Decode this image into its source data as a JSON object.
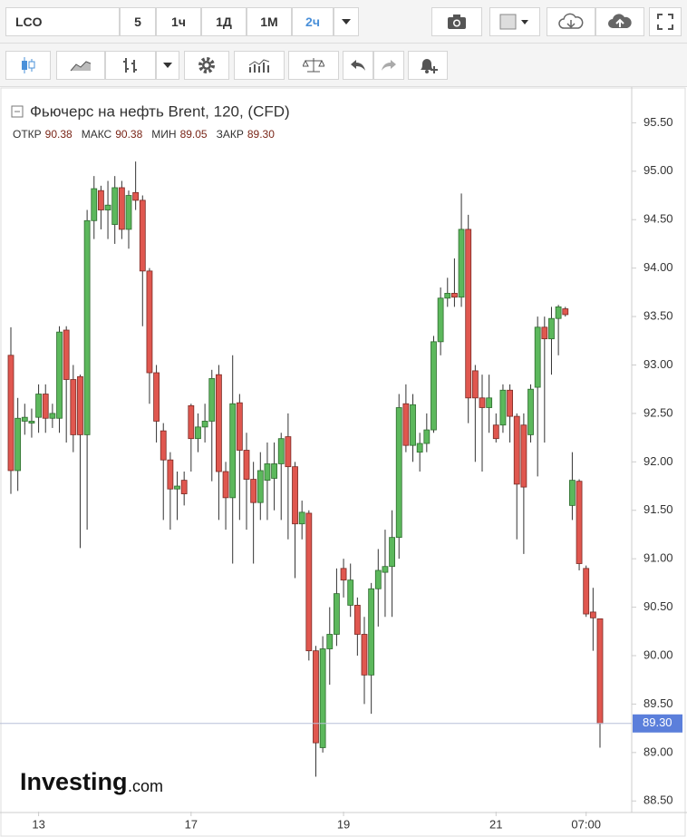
{
  "ui": {
    "symbol": "LCO",
    "intervals": [
      "5",
      "1ч",
      "1Д",
      "1М",
      "2ч"
    ],
    "brand": "Investing",
    "brand_suffix": ".com"
  },
  "chart_data": {
    "type": "candlestick",
    "title": "Фьючерс на нефть Brent, 120, (CFD)",
    "ohlc_header": [
      {
        "name": "ОТКР",
        "value": 90.38
      },
      {
        "name": "МАКС",
        "value": 90.38
      },
      {
        "name": "МИН",
        "value": 89.05
      },
      {
        "name": "ЗАКР",
        "value": {
          "value": 89.3,
          "label": "89.30"
        }
      }
    ],
    "up_color": "#5cb85c",
    "down_color": "#e0574f",
    "categories": [
      null,
      null,
      null,
      null,
      "13",
      null,
      null,
      null,
      null,
      null,
      null,
      null,
      null,
      null,
      null,
      null,
      null,
      null,
      null,
      null,
      null,
      null,
      null,
      null,
      null,
      null,
      "17",
      null,
      null,
      null,
      null,
      null,
      null,
      null,
      null,
      null,
      null,
      null,
      null,
      null,
      null,
      null,
      null,
      null,
      null,
      null,
      null,
      null,
      "19",
      null,
      null,
      null,
      null,
      null,
      null,
      null,
      null,
      null,
      null,
      null,
      null,
      null,
      null,
      null,
      null,
      null,
      null,
      null,
      null,
      null,
      "21",
      null,
      null,
      null,
      null,
      null,
      null,
      null,
      null,
      null,
      null,
      null,
      null,
      "07:00",
      null,
      null
    ],
    "open": [
      93.1,
      91.91,
      92.42,
      92.4,
      92.46,
      92.7,
      92.45,
      92.45,
      93.36,
      92.85,
      92.88,
      92.28,
      94.49,
      94.8,
      94.6,
      94.45,
      94.83,
      94.4,
      94.78,
      94.7,
      93.97,
      92.92,
      92.32,
      92.02,
      91.72,
      91.81,
      92.58,
      92.24,
      92.36,
      92.42,
      92.9,
      91.9,
      91.63,
      92.61,
      92.12,
      91.82,
      91.58,
      91.81,
      91.83,
      91.98,
      92.26,
      91.95,
      91.36,
      91.47,
      90.05,
      89.05,
      90.07,
      90.22,
      90.9,
      90.52,
      90.52,
      90.22,
      89.8,
      90.69,
      90.86,
      90.92,
      91.22,
      92.6,
      92.17,
      92.1,
      92.19,
      92.33,
      93.24,
      93.69,
      93.74,
      93.7,
      94.4,
      92.94,
      92.66,
      92.56,
      92.38,
      92.38,
      92.74,
      92.47,
      92.38,
      92.28,
      92.77,
      93.39,
      93.27,
      93.48,
      93.58,
      91.55,
      91.8,
      90.9,
      90.45,
      90.38
    ],
    "high": [
      93.39,
      92.66,
      92.6,
      92.55,
      92.8,
      92.8,
      92.6,
      93.4,
      93.4,
      93.0,
      92.9,
      94.6,
      94.95,
      94.85,
      94.9,
      94.95,
      94.9,
      94.8,
      95.1,
      94.75,
      94.0,
      93.0,
      92.4,
      92.1,
      91.9,
      91.9,
      92.6,
      92.5,
      92.6,
      92.95,
      93.0,
      92.0,
      93.1,
      92.7,
      92.3,
      92.0,
      92.1,
      92.2,
      92.2,
      92.3,
      92.5,
      92.0,
      91.6,
      91.5,
      90.1,
      90.2,
      90.5,
      90.9,
      91.0,
      90.95,
      90.6,
      90.4,
      90.75,
      91.1,
      91.3,
      91.5,
      92.7,
      92.8,
      92.7,
      92.3,
      92.5,
      93.3,
      93.8,
      93.9,
      94.1,
      94.77,
      94.55,
      93.0,
      92.9,
      92.9,
      92.5,
      92.8,
      92.8,
      92.5,
      92.5,
      92.8,
      93.5,
      93.5,
      93.6,
      93.62,
      93.6,
      92.1,
      91.82,
      90.93,
      90.7,
      90.38
    ],
    "low": [
      91.67,
      91.7,
      92.28,
      92.25,
      92.3,
      92.3,
      92.35,
      92.3,
      92.2,
      92.1,
      91.11,
      91.3,
      94.3,
      94.4,
      94.3,
      94.25,
      94.3,
      94.2,
      94.6,
      93.4,
      92.6,
      92.2,
      91.4,
      91.3,
      91.4,
      91.55,
      91.9,
      92.1,
      92.2,
      91.8,
      91.4,
      91.3,
      90.95,
      91.4,
      91.3,
      90.95,
      91.4,
      91.4,
      91.5,
      91.4,
      91.2,
      90.8,
      91.2,
      89.95,
      88.75,
      89.0,
      89.7,
      90.1,
      90.6,
      90.4,
      90.0,
      89.5,
      89.4,
      90.3,
      90.4,
      90.4,
      91.0,
      92.1,
      92.0,
      91.9,
      92.1,
      92.3,
      93.1,
      93.6,
      93.6,
      93.6,
      92.4,
      92.0,
      91.9,
      92.3,
      92.2,
      92.3,
      92.2,
      91.2,
      91.05,
      92.2,
      91.85,
      92.2,
      92.9,
      93.1,
      93.5,
      91.4,
      90.88,
      90.4,
      90.05,
      89.05
    ],
    "close": [
      91.91,
      92.45,
      92.46,
      92.42,
      92.7,
      92.45,
      92.5,
      93.34,
      92.85,
      92.28,
      92.28,
      94.49,
      94.82,
      94.6,
      94.65,
      94.83,
      94.4,
      94.75,
      94.7,
      93.97,
      92.92,
      92.42,
      92.02,
      91.72,
      91.75,
      91.67,
      92.24,
      92.36,
      92.42,
      92.86,
      91.9,
      91.63,
      92.6,
      92.12,
      91.82,
      91.58,
      91.91,
      91.98,
      91.98,
      92.24,
      91.95,
      91.36,
      91.48,
      90.05,
      89.1,
      90.07,
      90.22,
      90.64,
      90.78,
      90.78,
      90.22,
      89.8,
      90.69,
      90.88,
      90.92,
      91.22,
      92.56,
      92.17,
      92.59,
      92.19,
      92.33,
      93.24,
      93.69,
      93.74,
      93.7,
      94.4,
      92.66,
      92.66,
      92.56,
      92.66,
      92.24,
      92.74,
      92.47,
      91.77,
      91.74,
      92.75,
      93.39,
      93.27,
      93.48,
      93.6,
      93.52,
      91.81,
      90.95,
      90.43,
      90.39,
      89.3
    ],
    "current": {
      "value": 89.3,
      "label": "89.30"
    },
    "ylim": [
      88.39,
      95.85
    ],
    "yticks": [
      {
        "value": 88.5,
        "label": "88.50"
      },
      {
        "value": 89,
        "label": "89.00"
      },
      {
        "value": 89.5,
        "label": "89.50"
      },
      {
        "value": 90,
        "label": "90.00"
      },
      {
        "value": 90.5,
        "label": "90.50"
      },
      {
        "value": 91,
        "label": "91.00"
      },
      {
        "value": 91.5,
        "label": "91.50"
      },
      {
        "value": 92,
        "label": "92.00"
      },
      {
        "value": 92.5,
        "label": "92.50"
      },
      {
        "value": 93,
        "label": "93.00"
      },
      {
        "value": 93.5,
        "label": "93.50"
      },
      {
        "value": 94,
        "label": "94.00"
      },
      {
        "value": 94.5,
        "label": "94.50"
      },
      {
        "value": 95,
        "label": "95.00"
      },
      {
        "value": 95.5,
        "label": "95.50"
      }
    ]
  }
}
